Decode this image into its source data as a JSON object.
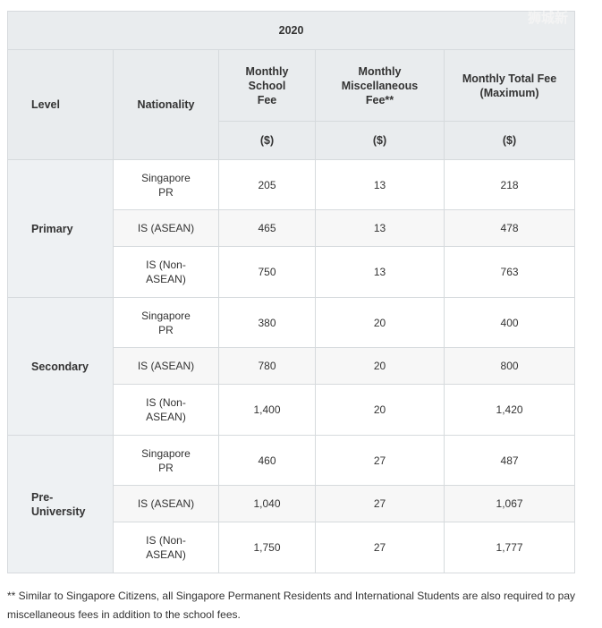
{
  "watermark": "狮城新",
  "header": {
    "year": "2020",
    "columns": [
      "Level",
      "Nationality",
      "Monthly School Fee",
      "Monthly Miscellaneous Fee**",
      "Monthly Total Fee (Maximum)"
    ],
    "units": [
      "($)",
      "($)",
      "($)"
    ]
  },
  "groups": [
    {
      "level": "Primary",
      "rows": [
        {
          "nationality": "Singapore PR",
          "school": "205",
          "misc": "13",
          "total": "218"
        },
        {
          "nationality": "IS (ASEAN)",
          "school": "465",
          "misc": "13",
          "total": "478"
        },
        {
          "nationality": "IS (Non-ASEAN)",
          "school": "750",
          "misc": "13",
          "total": "763"
        }
      ]
    },
    {
      "level": "Secondary",
      "rows": [
        {
          "nationality": "Singapore PR",
          "school": "380",
          "misc": "20",
          "total": "400"
        },
        {
          "nationality": "IS (ASEAN)",
          "school": "780",
          "misc": "20",
          "total": "800"
        },
        {
          "nationality": "IS (Non-ASEAN)",
          "school": "1,400",
          "misc": "20",
          "total": "1,420"
        }
      ]
    },
    {
      "level": "Pre-University",
      "rows": [
        {
          "nationality": "Singapore PR",
          "school": "460",
          "misc": "27",
          "total": "487"
        },
        {
          "nationality": "IS (ASEAN)",
          "school": "1,040",
          "misc": "27",
          "total": "1,067"
        },
        {
          "nationality": "IS (Non-ASEAN)",
          "school": "1,750",
          "misc": "27",
          "total": "1,777"
        }
      ]
    }
  ],
  "footnote": "** Similar to Singapore Citizens, all Singapore Permanent Residents and International Students are also required to pay miscellaneous fees in addition to the school fees."
}
